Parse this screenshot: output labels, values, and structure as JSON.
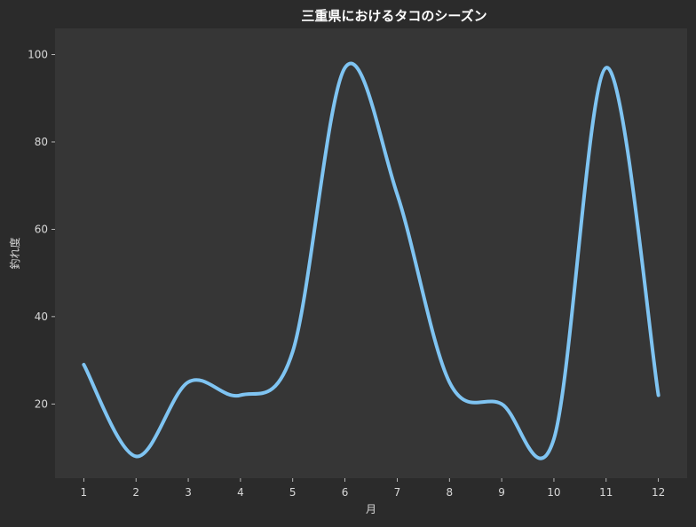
{
  "colors": {
    "figure_background": "#2b2b2b",
    "plot_background": "#363636",
    "line": "#7fc4f2",
    "text": "#d8d8d8",
    "title": "#ffffff"
  },
  "chart_data": {
    "type": "line",
    "title": "三重県におけるタコのシーズン",
    "xlabel": "月",
    "ylabel": "釣れ度",
    "x": [
      1,
      2,
      3,
      4,
      5,
      6,
      7,
      8,
      9,
      10,
      11,
      12
    ],
    "series": [
      {
        "values": [
          29,
          8,
          25,
          22,
          32,
          97,
          68,
          25,
          20,
          12,
          97,
          22
        ],
        "smooth": true
      }
    ],
    "xticks": [
      "1",
      "2",
      "3",
      "4",
      "5",
      "6",
      "7",
      "8",
      "9",
      "10",
      "11",
      "12"
    ],
    "yticks": [
      20,
      40,
      60,
      80,
      100
    ],
    "xlim": [
      0.45,
      12.55
    ],
    "ylim": [
      3,
      106
    ],
    "grid": false
  }
}
